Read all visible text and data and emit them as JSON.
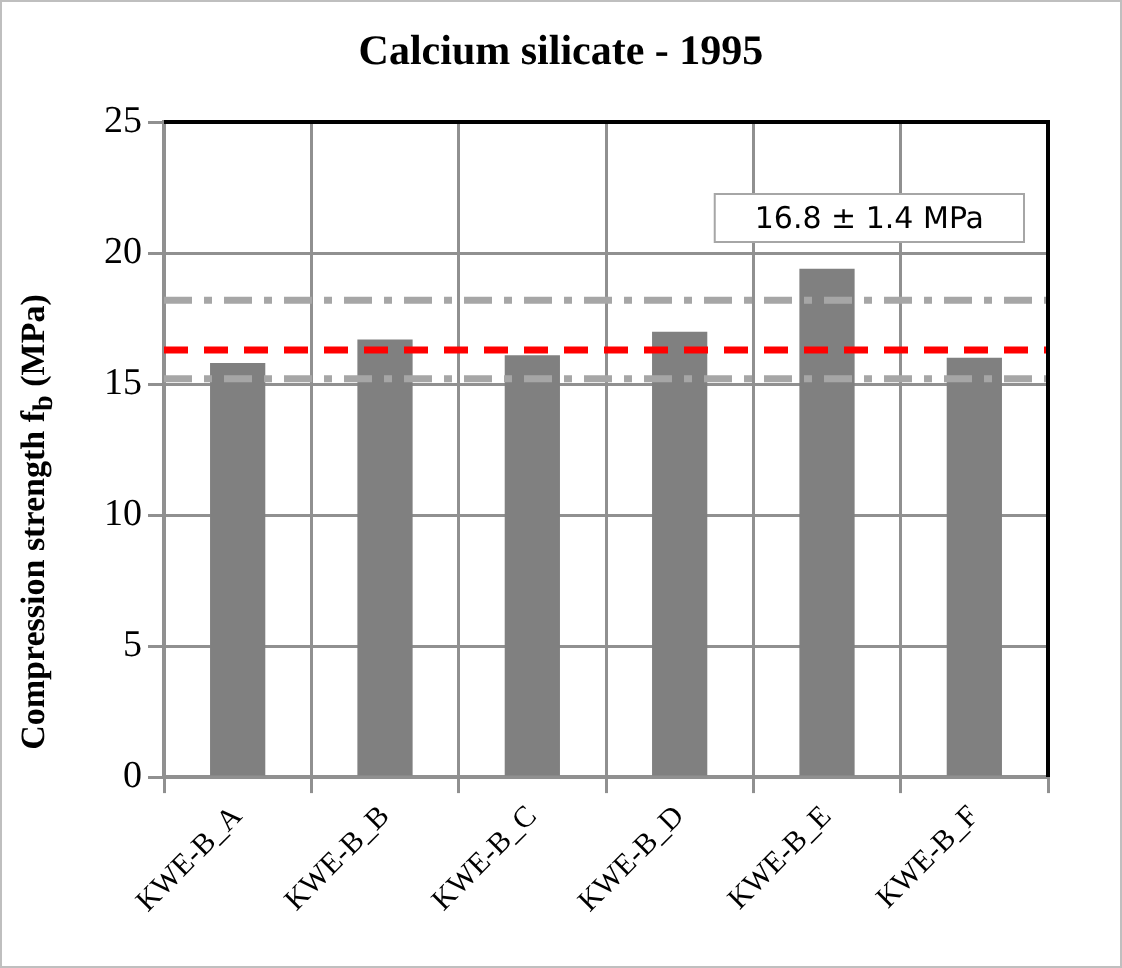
{
  "chart_data": {
    "type": "bar",
    "title": "Calcium silicate - 1995",
    "ylabel": "Compression strength f$_{b}$ (MPa)",
    "categories": [
      "KWE-B_A",
      "KWE-B_B",
      "KWE-B_C",
      "KWE-B_D",
      "KWE-B_E",
      "KWE-B_F"
    ],
    "values": [
      15.8,
      16.7,
      16.1,
      17.0,
      19.4,
      16.0
    ],
    "color": "#808080",
    "ylim": [
      0,
      25
    ],
    "yticks": [
      0,
      5,
      10,
      15,
      20,
      25
    ],
    "grid": true,
    "ref_lines": [
      {
        "axis": "y",
        "value": 16.3,
        "color": "#ff0000",
        "line_style": "dashed"
      },
      {
        "axis": "y",
        "value": 18.2,
        "color": "#a6a6a6",
        "line_style": "dashdot"
      },
      {
        "axis": "y",
        "value": 15.2,
        "color": "#a6a6a6",
        "line_style": "dashdot"
      }
    ],
    "annotations": [
      "16.8 ± 1.4 MPa"
    ]
  }
}
